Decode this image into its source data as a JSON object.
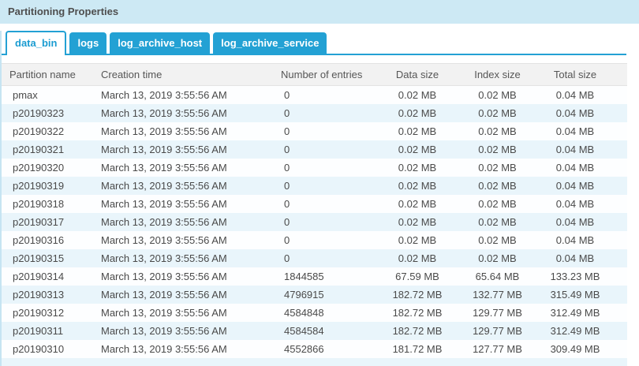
{
  "panel": {
    "title": "Partitioning Properties"
  },
  "tabs": [
    {
      "label": "data_bin",
      "active": true
    },
    {
      "label": "logs",
      "active": false
    },
    {
      "label": "log_archive_host",
      "active": false
    },
    {
      "label": "log_archive_service",
      "active": false
    }
  ],
  "table": {
    "columns": [
      "Partition name",
      "Creation time",
      "Number of entries",
      "Data size",
      "Index size",
      "Total size"
    ],
    "column_keys": [
      "partition-name",
      "creation-time",
      "number-of-entries",
      "data-size",
      "index-size",
      "total-size"
    ],
    "rows": [
      [
        "pmax",
        "March 13, 2019 3:55:56 AM",
        "0",
        "0.02 MB",
        "0.02 MB",
        "0.04 MB"
      ],
      [
        "p20190323",
        "March 13, 2019 3:55:56 AM",
        "0",
        "0.02 MB",
        "0.02 MB",
        "0.04 MB"
      ],
      [
        "p20190322",
        "March 13, 2019 3:55:56 AM",
        "0",
        "0.02 MB",
        "0.02 MB",
        "0.04 MB"
      ],
      [
        "p20190321",
        "March 13, 2019 3:55:56 AM",
        "0",
        "0.02 MB",
        "0.02 MB",
        "0.04 MB"
      ],
      [
        "p20190320",
        "March 13, 2019 3:55:56 AM",
        "0",
        "0.02 MB",
        "0.02 MB",
        "0.04 MB"
      ],
      [
        "p20190319",
        "March 13, 2019 3:55:56 AM",
        "0",
        "0.02 MB",
        "0.02 MB",
        "0.04 MB"
      ],
      [
        "p20190318",
        "March 13, 2019 3:55:56 AM",
        "0",
        "0.02 MB",
        "0.02 MB",
        "0.04 MB"
      ],
      [
        "p20190317",
        "March 13, 2019 3:55:56 AM",
        "0",
        "0.02 MB",
        "0.02 MB",
        "0.04 MB"
      ],
      [
        "p20190316",
        "March 13, 2019 3:55:56 AM",
        "0",
        "0.02 MB",
        "0.02 MB",
        "0.04 MB"
      ],
      [
        "p20190315",
        "March 13, 2019 3:55:56 AM",
        "0",
        "0.02 MB",
        "0.02 MB",
        "0.04 MB"
      ],
      [
        "p20190314",
        "March 13, 2019 3:55:56 AM",
        "1844585",
        "67.59 MB",
        "65.64 MB",
        "133.23 MB"
      ],
      [
        "p20190313",
        "March 13, 2019 3:55:56 AM",
        "4796915",
        "182.72 MB",
        "132.77 MB",
        "315.49 MB"
      ],
      [
        "p20190312",
        "March 13, 2019 3:55:56 AM",
        "4584848",
        "182.72 MB",
        "129.77 MB",
        "312.49 MB"
      ],
      [
        "p20190311",
        "March 13, 2019 3:55:56 AM",
        "4584584",
        "182.72 MB",
        "129.77 MB",
        "312.49 MB"
      ],
      [
        "p20190310",
        "March 13, 2019 3:55:56 AM",
        "4552866",
        "181.72 MB",
        "127.77 MB",
        "309.49 MB"
      ]
    ]
  },
  "colors": {
    "accent": "#23a1d4",
    "title_bar": "#cde9f4",
    "row_alternate": "#e9f5fb",
    "header_bg": "#f2f2f2",
    "active_tab_text": "#1b9cd1"
  }
}
